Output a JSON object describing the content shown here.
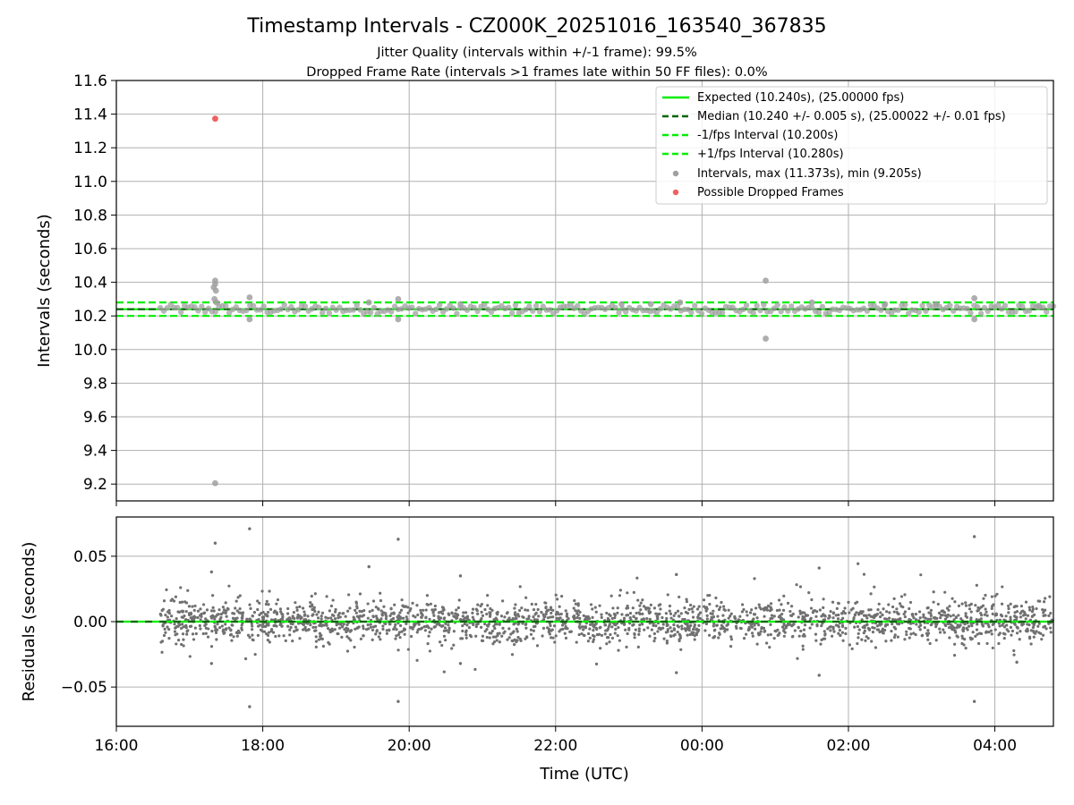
{
  "chart_data": [
    {
      "type": "scatter",
      "title": "Timestamp Intervals - CZ000K_20251016_163540_367835",
      "subtitle_lines": [
        "Jitter Quality (intervals within +/-1 frame): 99.5%",
        "Dropped Frame Rate (intervals >1 frames late within 50 FF files): 0.0%"
      ],
      "ylabel": "Intervals (seconds)",
      "xlim_hours": [
        16.0,
        28.8
      ],
      "ylim": [
        9.1,
        11.6
      ],
      "yticks": [
        "9.2",
        "9.4",
        "9.6",
        "9.8",
        "10.0",
        "10.2",
        "10.4",
        "10.6",
        "10.8",
        "11.0",
        "11.2",
        "11.4",
        "11.6"
      ],
      "grid": true,
      "legend_position": "top-right",
      "reference_lines": [
        {
          "name": "Expected (10.240s), (25.00000 fps)",
          "value": 10.24,
          "color": "#00ee00",
          "style": "solid"
        },
        {
          "name": "Median (10.240 +/- 0.005 s), (25.00022 +/- 0.01 fps)",
          "value": 10.24,
          "color": "#006400",
          "style": "dashed"
        },
        {
          "name": "-1/fps Interval (10.200s)",
          "value": 10.2,
          "color": "#00ee00",
          "style": "dashed"
        },
        {
          "name": "+1/fps Interval (10.280s)",
          "value": 10.28,
          "color": "#00ee00",
          "style": "dashed"
        }
      ],
      "series": [
        {
          "name": "Intervals, max (11.373s), min (9.205s)",
          "color": "#a0a0a0",
          "points": [
            {
              "t": 17.35,
              "v": 10.41
            },
            {
              "t": 17.35,
              "v": 10.39
            },
            {
              "t": 17.33,
              "v": 10.37
            },
            {
              "t": 17.36,
              "v": 10.35
            },
            {
              "t": 17.34,
              "v": 10.3
            },
            {
              "t": 17.37,
              "v": 10.28
            },
            {
              "t": 17.35,
              "v": 9.205
            },
            {
              "t": 17.82,
              "v": 10.31
            },
            {
              "t": 17.82,
              "v": 10.18
            },
            {
              "t": 19.45,
              "v": 10.28
            },
            {
              "t": 19.85,
              "v": 10.3
            },
            {
              "t": 19.85,
              "v": 10.18
            },
            {
              "t": 20.7,
              "v": 10.27
            },
            {
              "t": 22.9,
              "v": 10.27
            },
            {
              "t": 23.3,
              "v": 10.27
            },
            {
              "t": 23.7,
              "v": 10.28
            },
            {
              "t": 24.87,
              "v": 10.41
            },
            {
              "t": 24.87,
              "v": 10.065
            },
            {
              "t": 25.5,
              "v": 10.28
            },
            {
              "t": 26.5,
              "v": 10.27
            },
            {
              "t": 27.2,
              "v": 10.27
            },
            {
              "t": 27.72,
              "v": 10.305
            },
            {
              "t": 27.72,
              "v": 10.18
            },
            {
              "t": 28.6,
              "v": 10.26
            }
          ],
          "band": {
            "t_start": 16.6,
            "t_end": 28.8,
            "center": 10.24,
            "half_width": 0.03,
            "count": 260
          }
        },
        {
          "name": "Possible Dropped Frames",
          "color": "#f06060",
          "points": [
            {
              "t": 17.35,
              "v": 11.373
            }
          ]
        }
      ]
    },
    {
      "type": "scatter",
      "ylabel": "Residuals (seconds)",
      "xlabel": "Time (UTC)",
      "xlim_hours": [
        16.0,
        28.8
      ],
      "xticks": [
        {
          "hour": 16,
          "label": "16:00"
        },
        {
          "hour": 18,
          "label": "18:00"
        },
        {
          "hour": 20,
          "label": "20:00"
        },
        {
          "hour": 22,
          "label": "22:00"
        },
        {
          "hour": 24,
          "label": "00:00"
        },
        {
          "hour": 26,
          "label": "02:00"
        },
        {
          "hour": 28,
          "label": "04:00"
        }
      ],
      "ylim": [
        -0.08,
        0.08
      ],
      "yticks": [
        "0.05",
        "0.00",
        "−0.05"
      ],
      "grid": true,
      "zero_line_color": "#00ee00",
      "series": [
        {
          "name": "Residuals",
          "color": "#707070",
          "t_start": 16.6,
          "t_end": 28.8,
          "count": 2200,
          "spread": 0.008,
          "outliers": [
            {
              "t": 17.35,
              "v": 0.06
            },
            {
              "t": 17.82,
              "v": 0.071
            },
            {
              "t": 17.82,
              "v": -0.065
            },
            {
              "t": 19.85,
              "v": 0.063
            },
            {
              "t": 19.85,
              "v": -0.061
            },
            {
              "t": 27.72,
              "v": 0.065
            },
            {
              "t": 27.72,
              "v": -0.061
            },
            {
              "t": 19.45,
              "v": 0.042
            },
            {
              "t": 25.6,
              "v": 0.041
            },
            {
              "t": 25.6,
              "v": -0.041
            },
            {
              "t": 23.65,
              "v": 0.036
            },
            {
              "t": 23.65,
              "v": -0.039
            },
            {
              "t": 17.3,
              "v": 0.038
            },
            {
              "t": 17.3,
              "v": -0.032
            },
            {
              "t": 28.3,
              "v": -0.031
            },
            {
              "t": 20.7,
              "v": 0.035
            },
            {
              "t": 20.7,
              "v": -0.032
            }
          ]
        }
      ]
    }
  ]
}
